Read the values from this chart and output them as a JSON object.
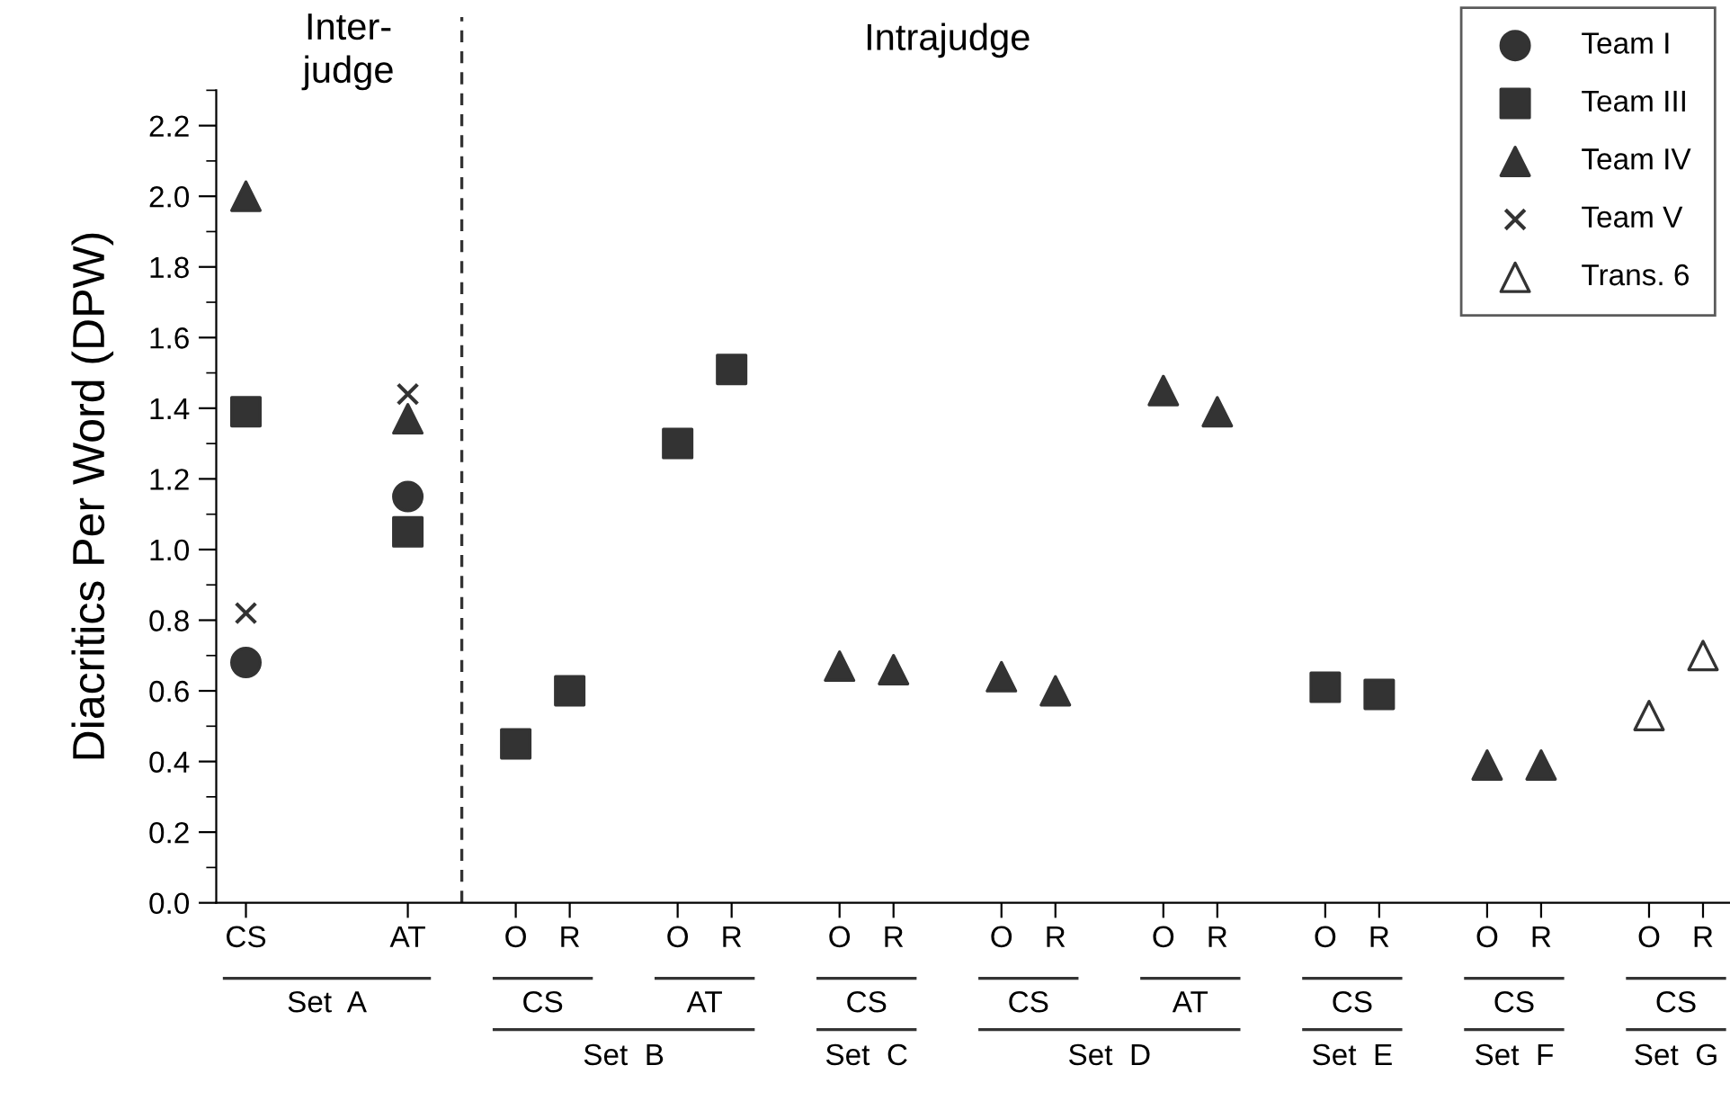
{
  "chart_data": {
    "type": "scatter",
    "ylabel": "Diacritics Per Word (DPW)",
    "categories": [
      "CS",
      null,
      null,
      "AT",
      null,
      "O",
      "R",
      null,
      "O",
      "R",
      null,
      "O",
      "R",
      null,
      "O",
      "R",
      null,
      "O",
      "R",
      null,
      "O",
      "R",
      null,
      "O",
      "R",
      null,
      "O",
      "R"
    ],
    "series": [
      {
        "name": "Team I",
        "color": "#333333",
        "marker": "circle",
        "values": [
          0.68,
          null,
          null,
          1.15,
          null,
          null,
          null,
          null,
          null,
          null,
          null,
          null,
          null,
          null,
          null,
          null,
          null,
          null,
          null,
          null,
          null,
          null,
          null,
          null,
          null,
          null,
          null,
          null
        ]
      },
      {
        "name": "Team III",
        "color": "#333333",
        "marker": "square",
        "values": [
          1.39,
          null,
          null,
          1.05,
          null,
          0.45,
          0.6,
          null,
          1.3,
          1.51,
          null,
          null,
          null,
          null,
          null,
          null,
          null,
          null,
          null,
          null,
          0.61,
          0.59,
          null,
          null,
          null,
          null,
          null,
          null
        ]
      },
      {
        "name": "Team IV",
        "color": "#333333",
        "marker": "triangle",
        "values": [
          2.0,
          null,
          null,
          1.37,
          null,
          null,
          null,
          null,
          null,
          null,
          null,
          0.67,
          0.66,
          null,
          0.64,
          0.6,
          null,
          1.45,
          1.39,
          null,
          null,
          null,
          null,
          0.39,
          0.39,
          null,
          null,
          null
        ]
      },
      {
        "name": "Team V",
        "color": "#333333",
        "marker": "cross",
        "values": [
          0.82,
          null,
          null,
          1.44,
          null,
          null,
          null,
          null,
          null,
          null,
          null,
          null,
          null,
          null,
          null,
          null,
          null,
          null,
          null,
          null,
          null,
          null,
          null,
          null,
          null,
          null,
          null,
          null
        ]
      },
      {
        "name": "Trans. 6",
        "color": "#ffffff",
        "marker": "triangle",
        "values": [
          null,
          null,
          null,
          null,
          null,
          null,
          null,
          null,
          null,
          null,
          null,
          null,
          null,
          null,
          null,
          null,
          null,
          null,
          null,
          null,
          null,
          null,
          null,
          null,
          null,
          null,
          0.53,
          0.7
        ]
      }
    ],
    "ylim": [
      0,
      2.3
    ],
    "yticks": [
      {
        "value": 0,
        "label": "0.0"
      },
      0.2,
      0.4,
      0.6,
      0.8,
      {
        "value": 1,
        "label": "1.0"
      },
      1.2,
      1.4,
      1.6,
      1.8,
      {
        "value": 2,
        "label": "2.0"
      },
      2.2
    ],
    "annotations": [
      "Inter-\njudge",
      "Intrajudge",
      "Set  A",
      "CS",
      "AT",
      "CS",
      "CS",
      "AT",
      "CS",
      "CS",
      "CS",
      "Set  B",
      "Set  C",
      "Set  D",
      "Set  E",
      "Set  F",
      "Set  G"
    ],
    "legend": "top right"
  }
}
